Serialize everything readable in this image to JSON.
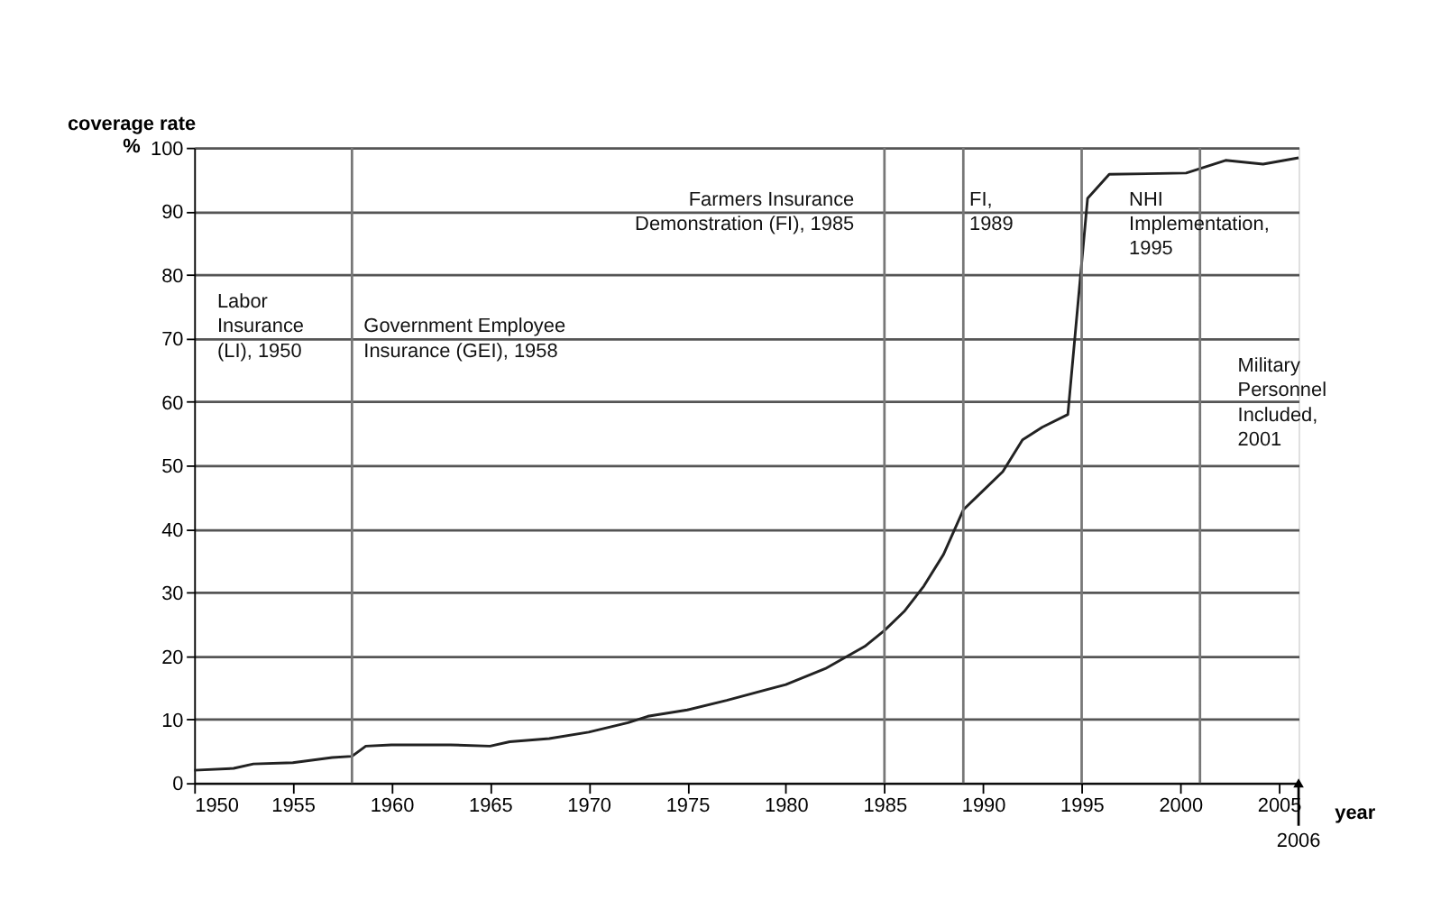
{
  "chart_data": {
    "type": "line",
    "ylabel": "coverage rate\n%",
    "xlabel": "year",
    "x": [
      1950,
      1952,
      1953,
      1955,
      1957,
      1958,
      1958.7,
      1960,
      1963,
      1965,
      1966,
      1968,
      1970,
      1972,
      1973,
      1975,
      1977,
      1980,
      1982,
      1984,
      1985,
      1986,
      1987,
      1988,
      1989,
      1990,
      1991,
      1992,
      1993,
      1994.3,
      1995.3,
      1996.4,
      2000.3,
      2002.3,
      2004.2,
      2006
    ],
    "series": [
      {
        "color": "#222222",
        "values": [
          2,
          2.3,
          3,
          3.2,
          4,
          4.2,
          5.8,
          6,
          6,
          5.8,
          6.5,
          7,
          8,
          9.5,
          10.5,
          11.5,
          13,
          15.5,
          18,
          21.5,
          24,
          27,
          31,
          36,
          43,
          46,
          49,
          54,
          56,
          58,
          92,
          95.8,
          96,
          98,
          97.4,
          98.4
        ]
      }
    ],
    "xlim": [
      1950,
      2006
    ],
    "xticks": [
      1950,
      1955,
      1960,
      1965,
      1970,
      1975,
      1980,
      1985,
      1990,
      1995,
      2000,
      2005
    ],
    "ylim": [
      0,
      100
    ],
    "yticks": [
      0,
      10,
      20,
      30,
      40,
      50,
      60,
      70,
      80,
      90,
      100
    ],
    "grid": "y",
    "marker": "none",
    "line_style": "solid",
    "ref_lines": [
      {
        "axis": "x",
        "value": 1958,
        "label": "Government Employee\nInsurance (GEI), 1958",
        "color": "#777777"
      },
      {
        "axis": "x",
        "value": 1985,
        "label": "Farmers Insurance\nDemonstration (FI), 1985",
        "color": "#777777"
      },
      {
        "axis": "x",
        "value": 1989,
        "label": "FI,\n1989",
        "color": "#777777"
      },
      {
        "axis": "x",
        "value": 1995,
        "label": "NHI\nImplementation,\n1995",
        "color": "#777777"
      },
      {
        "axis": "x",
        "value": 2001,
        "label": "Military\nPersonnel\nIncluded,\n2001",
        "color": "#777777"
      }
    ],
    "annotations": [
      "Labor\nInsurance\n(LI), 1950",
      {
        "text": "2006",
        "x": 2006,
        "y": 0
      }
    ]
  }
}
